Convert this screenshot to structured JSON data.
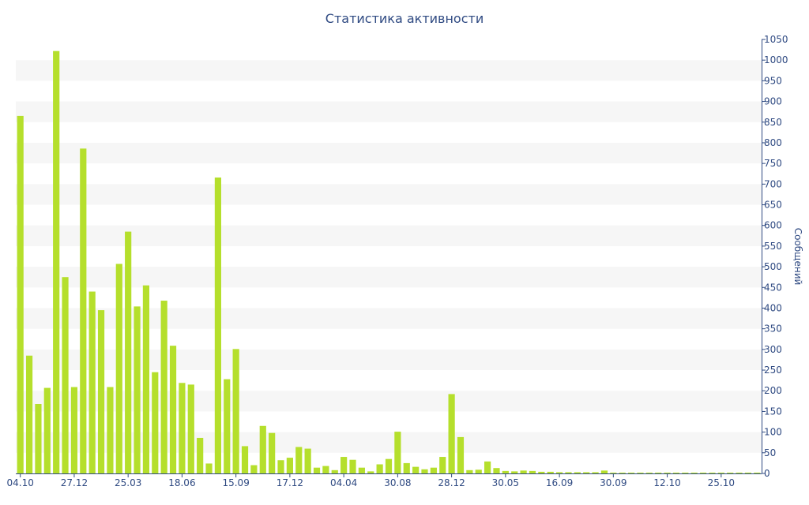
{
  "chart_data": {
    "type": "bar",
    "title": "Статистика активности",
    "ylabel": "Сообщений",
    "xlabel": "",
    "ylim": [
      0,
      1050
    ],
    "y_ticks": [
      0,
      50,
      100,
      150,
      200,
      250,
      300,
      350,
      400,
      450,
      500,
      550,
      600,
      650,
      700,
      750,
      800,
      850,
      900,
      950,
      1000,
      1050
    ],
    "y_axis_side": "right",
    "grid": "alternating horizontal bands",
    "x_tick_labels": [
      {
        "index": 0,
        "label": "04.10"
      },
      {
        "index": 6,
        "label": "27.12"
      },
      {
        "index": 12,
        "label": "25.03"
      },
      {
        "index": 18,
        "label": "18.06"
      },
      {
        "index": 24,
        "label": "15.09"
      },
      {
        "index": 30,
        "label": "17.12"
      },
      {
        "index": 36,
        "label": "04.04"
      },
      {
        "index": 42,
        "label": "30.08"
      },
      {
        "index": 48,
        "label": "28.12"
      },
      {
        "index": 54,
        "label": "30.05"
      },
      {
        "index": 60,
        "label": "16.09"
      },
      {
        "index": 66,
        "label": "30.09"
      },
      {
        "index": 72,
        "label": "12.10"
      },
      {
        "index": 78,
        "label": "25.10"
      }
    ],
    "bar_color": "#b5df2c",
    "band_color": "#f6f6f6",
    "text_color": "#2f4a82",
    "values": [
      865,
      285,
      168,
      207,
      1022,
      475,
      209,
      786,
      440,
      395,
      209,
      507,
      585,
      404,
      455,
      245,
      418,
      309,
      219,
      215,
      86,
      24,
      716,
      228,
      301,
      66,
      20,
      115,
      98,
      32,
      38,
      64,
      60,
      14,
      18,
      8,
      40,
      33,
      14,
      5,
      22,
      35,
      101,
      25,
      16,
      10,
      14,
      40,
      192,
      88,
      8,
      9,
      29,
      13,
      6,
      5,
      7,
      6,
      4,
      4,
      3,
      3,
      3,
      3,
      3,
      7,
      2,
      2,
      2,
      2,
      2,
      2,
      2,
      2,
      2,
      2,
      2,
      2,
      2,
      2,
      2,
      2,
      2
    ]
  }
}
